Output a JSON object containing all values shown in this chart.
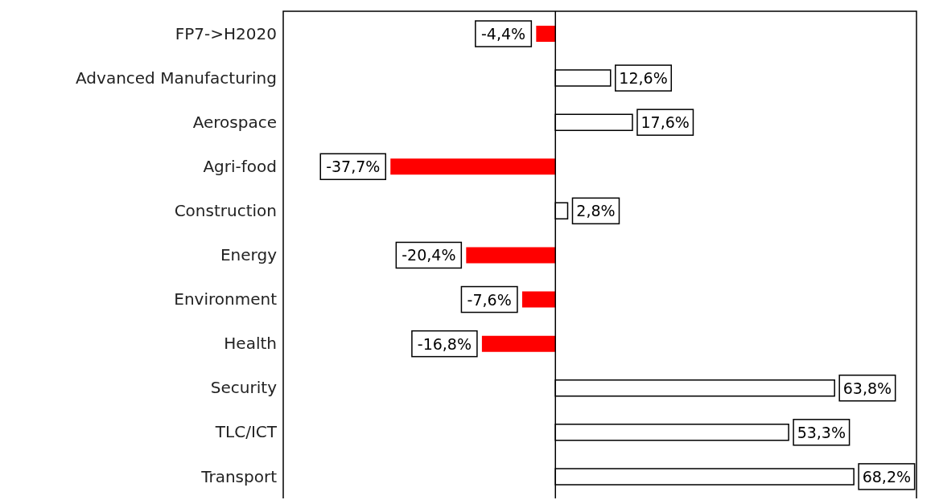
{
  "chart_data": {
    "type": "bar",
    "orientation": "horizontal",
    "categories": [
      "FP7->H2020",
      "Advanced Manufacturing",
      "Aerospace",
      "Agri-food",
      "Construction",
      "Energy",
      "Environment",
      "Health",
      "Security",
      "TLC/ICT",
      "Transport"
    ],
    "values": [
      -4.4,
      12.6,
      17.6,
      -37.7,
      2.8,
      -20.4,
      -7.6,
      -16.8,
      63.8,
      53.3,
      68.2
    ],
    "colors": [
      "#ff0000",
      "#ffffff",
      "#ffffff",
      "#ff0000",
      "#ffffff",
      "#ff0000",
      "#ff0000",
      "#ff0000",
      "#ffffff",
      "#ffffff",
      "#ffffff"
    ],
    "value_labels": [
      "-4,4%",
      "12,6%",
      "17,6%",
      "-37,7%",
      "2,8%",
      "-20,4%",
      "-7,6%",
      "-16,8%",
      "63,8%",
      "53,3%",
      "68,2%"
    ]
  }
}
